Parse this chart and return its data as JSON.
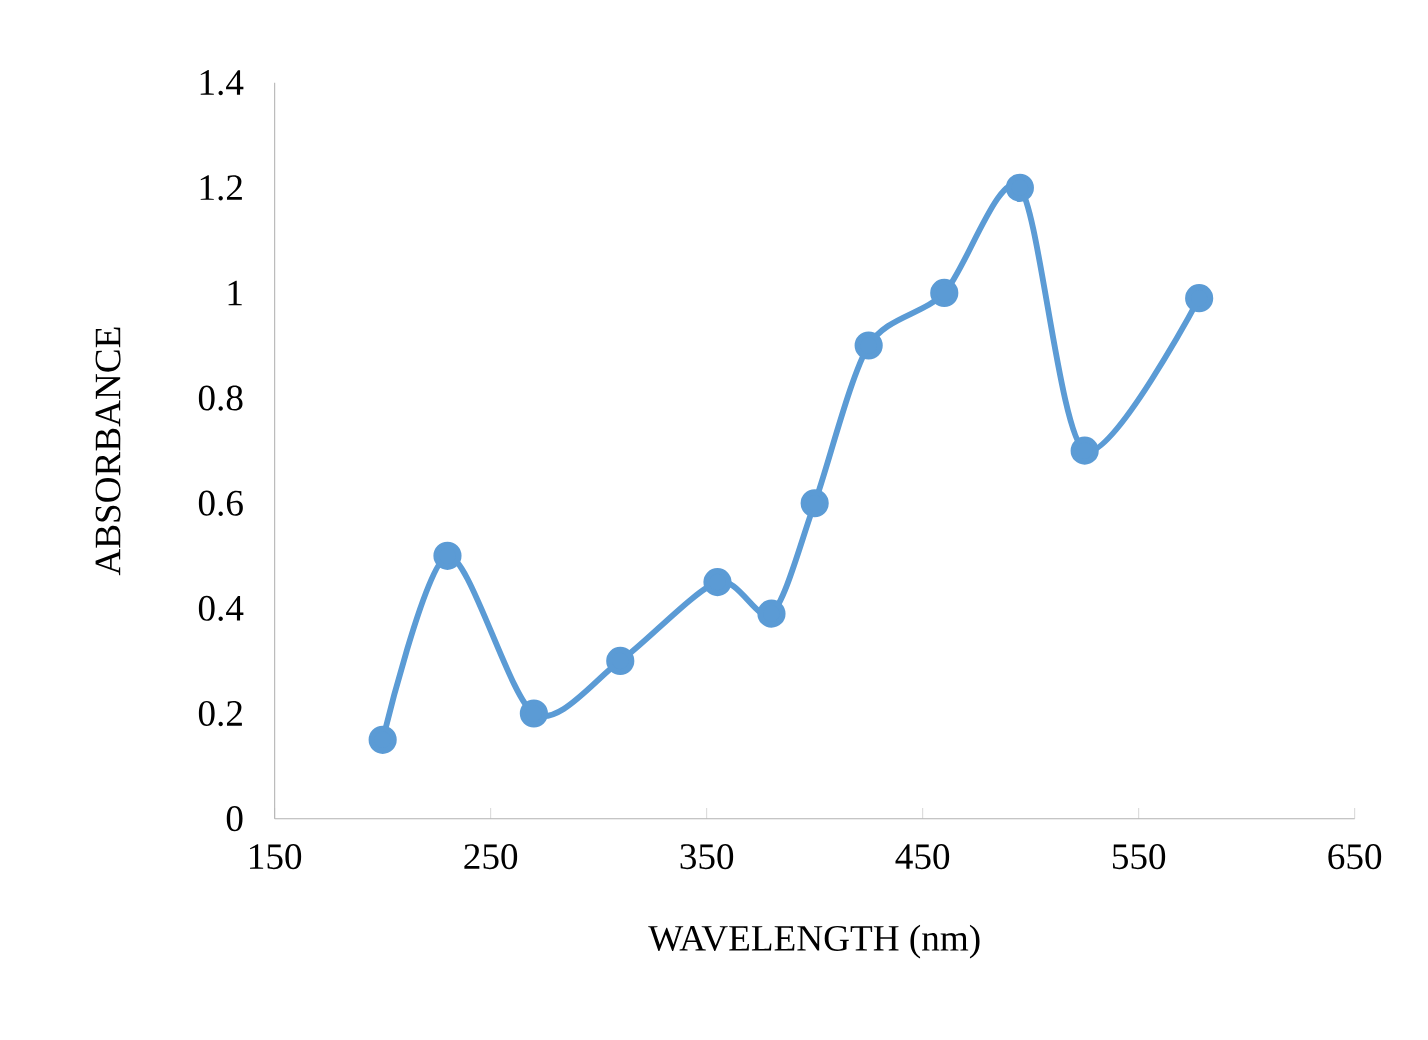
{
  "chart_data": {
    "type": "line",
    "xlabel": "WAVELENGTH (nm)",
    "ylabel": "ABSORBANCE",
    "x": [
      200,
      230,
      270,
      310,
      355,
      380,
      400,
      425,
      460,
      495,
      525,
      578
    ],
    "values": [
      0.15,
      0.5,
      0.2,
      0.3,
      0.45,
      0.39,
      0.6,
      0.9,
      1.0,
      1.2,
      0.7,
      0.99
    ],
    "color": "#5b9bd5",
    "marker": "circle",
    "line_style": "solid",
    "grid": false,
    "xlim": [
      150,
      650
    ],
    "xticks": [
      150,
      250,
      350,
      450,
      550,
      650
    ],
    "ylim": [
      0,
      1.4
    ],
    "yticks": [
      0,
      0.2,
      0.4,
      0.6,
      0.8,
      1,
      1.2,
      1.4
    ]
  }
}
